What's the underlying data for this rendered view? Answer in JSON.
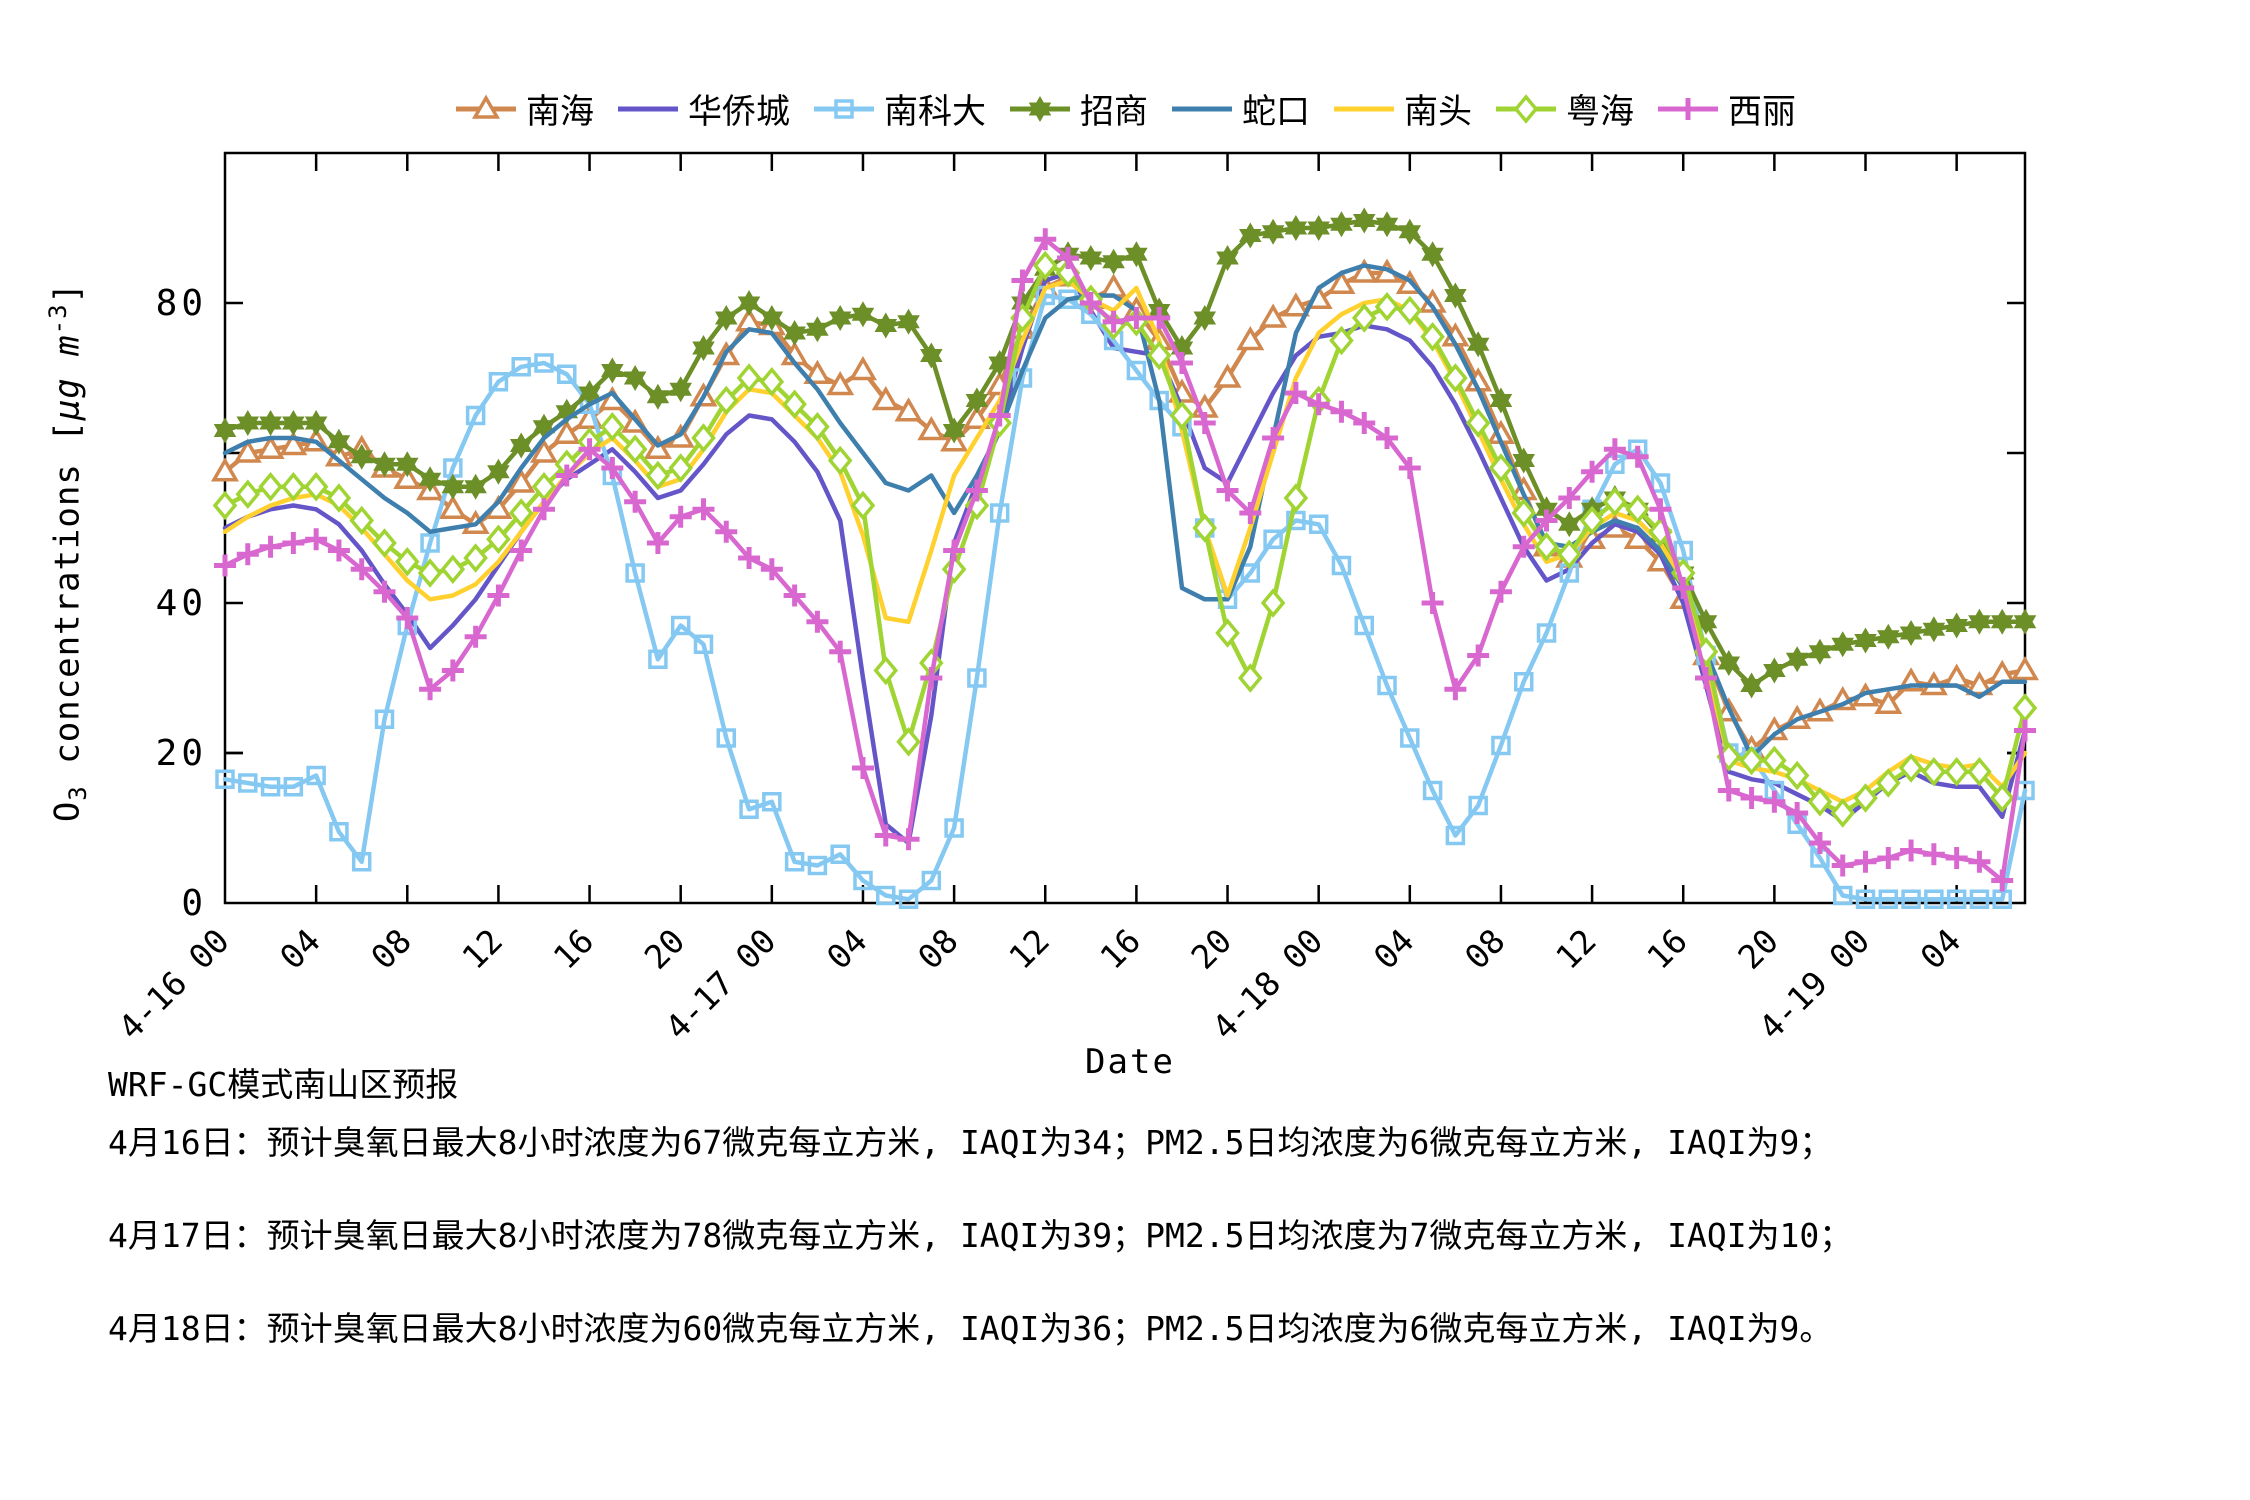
{
  "axes": {
    "xlabel": "Date",
    "ylabel_plain": "O3 concentrations [ug m-3]",
    "ylabel_parts": {
      "base": "O",
      "sub": "3",
      "mid": " concentrations [",
      "mu": "μg m",
      "sup": "-3",
      "end": "]"
    }
  },
  "footer": {
    "lines": [
      "WRF-GC模式南山区预报",
      "4月16日：预计臭氧日最大8小时浓度为67微克每立方米, IAQI为34；PM2.5日均浓度为6微克每立方米, IAQI为9；",
      "4月17日：预计臭氧日最大8小时浓度为78微克每立方米, IAQI为39；PM2.5日均浓度为7微克每立方米, IAQI为10；",
      "4月18日：预计臭氧日最大8小时浓度为60微克每立方米, IAQI为36；PM2.5日均浓度为6微克每立方米, IAQI为9。"
    ]
  },
  "chart_data": {
    "type": "line",
    "title": "",
    "xlabel": "Date",
    "ylabel": "O3 concentrations [μg m-3]",
    "ylim": [
      0,
      100
    ],
    "y_ticks_labeled": [
      80,
      40,
      20,
      0
    ],
    "y_ticks_unlabeled": [
      60,
      20
    ],
    "grid": false,
    "legend_position": "top",
    "x_hours_span": 79,
    "x_tick_step_hours": 4,
    "x_tick_labels": [
      "4-16 00",
      "04",
      "08",
      "12",
      "16",
      "20",
      "4-17 00",
      "04",
      "08",
      "12",
      "16",
      "20",
      "4-18 00",
      "04",
      "08",
      "12",
      "16",
      "20",
      "4-19 00",
      "04"
    ],
    "series": [
      {
        "name": "南海",
        "color": "#D1884F",
        "marker": "triangle",
        "values": [
          57.5,
          60,
          60.5,
          61,
          61.5,
          59.5,
          60.5,
          58,
          56.5,
          55,
          52.5,
          50.5,
          52.5,
          56,
          60,
          62.5,
          64.5,
          67,
          64,
          60.5,
          62,
          67.5,
          73,
          77.5,
          77,
          73,
          70.5,
          69,
          71,
          67,
          65.5,
          63,
          61.5,
          64.5,
          69,
          76.5,
          82,
          83.5,
          80.5,
          82,
          79,
          75,
          68,
          66,
          70,
          75,
          78,
          79.5,
          80.5,
          82.5,
          84,
          84,
          82.5,
          80,
          75.5,
          69.5,
          62.5,
          55,
          47.5,
          46,
          48.5,
          50,
          48.5,
          45.5,
          40.5,
          33,
          25.5,
          20.5,
          23,
          24.5,
          25.5,
          27,
          27.5,
          26.5,
          29.5,
          29,
          30,
          29,
          30.5,
          31
        ]
      },
      {
        "name": "华侨城",
        "color": "#6456C8",
        "marker": "none",
        "values": [
          50,
          51.5,
          52.5,
          53,
          52.5,
          50.5,
          47,
          42.5,
          38.5,
          34,
          37,
          40.5,
          45,
          49.5,
          53.5,
          56.5,
          58.5,
          60.5,
          57.5,
          54,
          55,
          58.5,
          62.5,
          65,
          64.5,
          61.5,
          57.5,
          51,
          30,
          10.5,
          8,
          25,
          48,
          56,
          63,
          74,
          83,
          84,
          79,
          74,
          73.5,
          73,
          66,
          58,
          56,
          62,
          68,
          73,
          75.5,
          76,
          77,
          76.5,
          75,
          71.5,
          66.5,
          60.5,
          54,
          47.5,
          43,
          44.5,
          48,
          50.5,
          49.5,
          46.5,
          40,
          29,
          17.5,
          16.5,
          16,
          14.5,
          13,
          11,
          13.5,
          16,
          17.5,
          16,
          15.5,
          15.5,
          11.5,
          23
        ]
      },
      {
        "name": "南科大",
        "color": "#85C9F2",
        "marker": "square",
        "values": [
          16.5,
          16,
          15.5,
          15.5,
          17,
          9.5,
          5.5,
          24.5,
          37,
          48,
          58,
          65,
          69.5,
          71.5,
          72,
          70.5,
          66.5,
          57,
          44,
          32.5,
          37,
          34.5,
          22,
          12.5,
          13.5,
          5.5,
          5,
          6.5,
          3,
          1,
          0.5,
          3,
          10,
          30,
          52,
          70,
          81,
          80.5,
          78.5,
          75,
          71,
          67,
          63.5,
          50,
          40.5,
          44,
          48.5,
          51,
          50.5,
          45,
          37,
          29,
          22,
          15,
          9,
          13,
          21,
          29.5,
          36,
          44,
          52.5,
          58.5,
          60.5,
          56,
          47,
          33,
          20,
          19.5,
          15,
          10.5,
          6,
          1,
          0.5,
          0.5,
          0.5,
          0.5,
          0.5,
          0.5,
          0.5,
          15
        ]
      },
      {
        "name": "招商",
        "color": "#6C8F28",
        "marker": "star",
        "values": [
          63,
          64,
          64,
          64,
          64,
          61.5,
          59.5,
          58.5,
          58.5,
          56.5,
          55.5,
          55.5,
          57.5,
          61,
          63.5,
          65.5,
          68,
          71,
          70,
          67.5,
          68.5,
          74,
          78,
          80,
          78,
          76,
          76.5,
          78,
          78.5,
          77,
          77.5,
          73,
          63,
          67,
          72,
          80,
          84.5,
          86.5,
          86,
          85.5,
          86.5,
          79,
          74,
          78,
          86,
          89,
          89.5,
          90,
          90,
          90.5,
          91,
          90.5,
          89.5,
          86.5,
          81,
          74.5,
          67,
          59,
          52.5,
          50.5,
          52.5,
          54,
          52.5,
          49,
          44,
          37.5,
          32,
          29,
          31,
          32.5,
          33.5,
          34.5,
          35,
          35.5,
          36,
          36.5,
          37,
          37.5,
          37.5,
          37.5
        ]
      },
      {
        "name": "蛇口",
        "color": "#3E7FAE",
        "marker": "none",
        "values": [
          60,
          61.5,
          62,
          62,
          61.5,
          59,
          56.5,
          54,
          52,
          49.5,
          50,
          50.5,
          53.5,
          58,
          62,
          64.5,
          66.5,
          68,
          64.5,
          61,
          62.5,
          67.5,
          73.5,
          76.5,
          76,
          72,
          68.5,
          64,
          60,
          56,
          55,
          57,
          52,
          57,
          63,
          71,
          78,
          80.5,
          81,
          81,
          79,
          67,
          42,
          40.5,
          40.5,
          47.5,
          62,
          76,
          82,
          84,
          85,
          84.5,
          83,
          79.5,
          74.5,
          68.5,
          61.5,
          54.5,
          48,
          47.5,
          49.5,
          51,
          50,
          47,
          42,
          33.5,
          26,
          19.5,
          22.5,
          24.5,
          25.5,
          26.5,
          28,
          28.5,
          29,
          29,
          29,
          27.5,
          29.5,
          29.5
        ]
      },
      {
        "name": "南头",
        "color": "#FFD02E",
        "marker": "none",
        "values": [
          49.5,
          51.5,
          53,
          54,
          54.5,
          53,
          50,
          46.5,
          43,
          40.5,
          41,
          42.5,
          45.5,
          49.5,
          53.5,
          57,
          60,
          62,
          59,
          55.5,
          56.5,
          60.5,
          65.5,
          68.5,
          68,
          65,
          62,
          57.5,
          49,
          38,
          37.5,
          47,
          57,
          62,
          67,
          75,
          82,
          83,
          80.5,
          79,
          82,
          75,
          63,
          50,
          41,
          50,
          60,
          70,
          76,
          78.5,
          80,
          80.5,
          79,
          75,
          69.5,
          63,
          56.5,
          50.5,
          45.5,
          46.5,
          50,
          52,
          51,
          48,
          43,
          32,
          19,
          18,
          17.5,
          16.5,
          15,
          13.5,
          15,
          17.5,
          19.5,
          18.5,
          18,
          18.5,
          15.5,
          20
        ]
      },
      {
        "name": "粤海",
        "color": "#9FD433",
        "marker": "diamond",
        "values": [
          53,
          54.5,
          55.5,
          55.5,
          55.5,
          54,
          51,
          48,
          45.5,
          44,
          44.5,
          46,
          48.5,
          52,
          55.5,
          58.5,
          61.5,
          63.5,
          60.5,
          57,
          58,
          62,
          67,
          70,
          69.5,
          66.5,
          63.5,
          59,
          53,
          31,
          21.5,
          32,
          44.5,
          53,
          64,
          78,
          85,
          84,
          80.5,
          77,
          77.5,
          73,
          65,
          50,
          36,
          30,
          40,
          54,
          67,
          75,
          78,
          79.5,
          79,
          75.5,
          70,
          64,
          58,
          52,
          47.5,
          46.5,
          51,
          53.5,
          52.5,
          49.5,
          44,
          33.5,
          19.5,
          19,
          19,
          17,
          13.5,
          12,
          14,
          16,
          18,
          17.5,
          17.5,
          17.5,
          14,
          26
        ]
      },
      {
        "name": "西丽",
        "color": "#D868D0",
        "marker": "plus",
        "values": [
          45,
          46.5,
          47.5,
          48,
          48.5,
          47,
          44.5,
          41.5,
          38,
          28.5,
          31,
          35.5,
          41,
          47,
          52.5,
          57,
          60.5,
          58,
          53.5,
          48,
          51.5,
          52.5,
          49.5,
          46,
          44.5,
          41,
          37.5,
          33.5,
          18,
          9,
          8.5,
          30,
          47,
          55,
          65,
          83,
          88.5,
          86,
          80,
          77.5,
          78,
          78,
          72,
          64,
          55,
          52,
          62,
          68,
          66.5,
          65.5,
          64,
          62,
          58,
          40,
          28.5,
          33,
          41.5,
          47.5,
          51,
          54,
          57.5,
          60.5,
          59.5,
          52.5,
          42,
          30,
          15,
          14,
          13.5,
          12,
          8,
          5,
          5.5,
          6,
          7,
          6.5,
          6,
          5.5,
          3,
          23
        ]
      }
    ]
  }
}
